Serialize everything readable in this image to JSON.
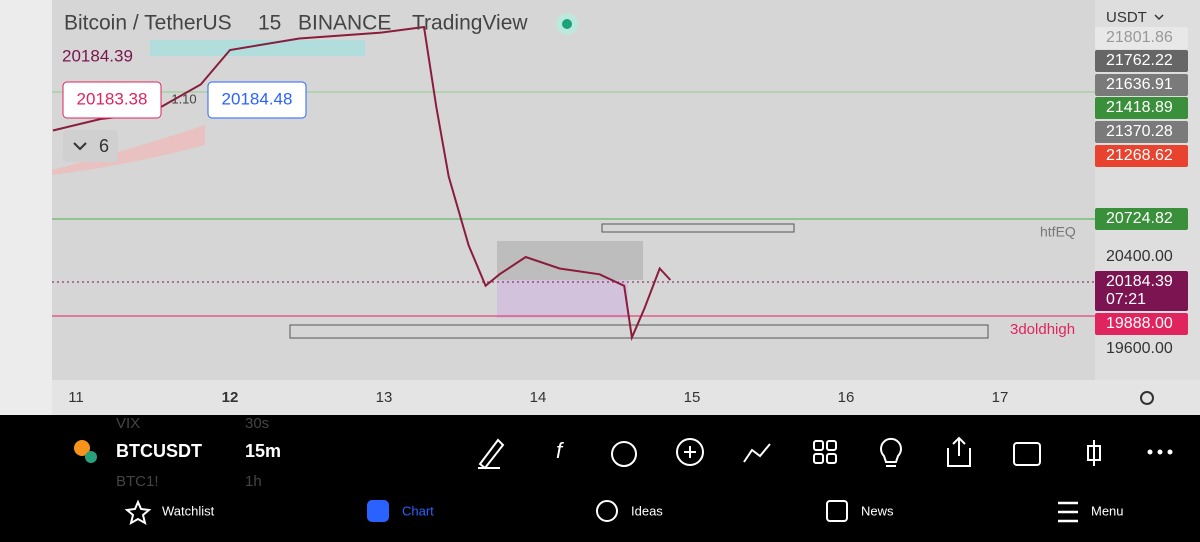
{
  "header": {
    "symbol": "Bitcoin / TetherUS",
    "interval": "15",
    "exchange": "BINANCE",
    "source": "TradingView",
    "last_price": "20184.39",
    "bid": "20183.38",
    "spread": "1.10",
    "ask": "20184.48",
    "indicators_count": "6"
  },
  "price_scale": {
    "currency": "USDT",
    "badges": [
      "21801.86",
      "21762.22",
      "21636.91",
      "21418.89",
      "21370.28",
      "21268.62",
      "20724.82",
      "20400.00",
      "20184.39",
      "07:21",
      "19888.00",
      "19600.00"
    ]
  },
  "annotations": [
    "htfEQ",
    "3doldhigh"
  ],
  "time_axis": [
    "11",
    "12",
    "13",
    "14",
    "15",
    "16",
    "17"
  ],
  "chart": {
    "x": [
      10.85,
      11.16,
      11.48,
      11.81,
      12.0,
      12.45,
      12.97,
      13.26,
      13.34,
      13.42,
      13.55,
      13.66,
      13.75,
      13.92,
      14.14,
      14.4,
      14.56,
      14.61,
      14.69,
      14.79,
      14.86
    ],
    "values": [
      21500,
      21600,
      21650,
      21900,
      22200,
      22300,
      22350,
      22400,
      21700,
      21100,
      20500,
      20150,
      20250,
      20400,
      20300,
      20250,
      20150,
      19700,
      19950,
      20300,
      20200
    ]
  },
  "toolbar": {
    "symbol": "BTCUSDT",
    "interval": "15m",
    "hidden": [
      "VIX",
      "30s",
      "BTC1!",
      "1h"
    ]
  },
  "nav": [
    "Watchlist",
    "Chart",
    "Ideas",
    "News",
    "Menu"
  ]
}
